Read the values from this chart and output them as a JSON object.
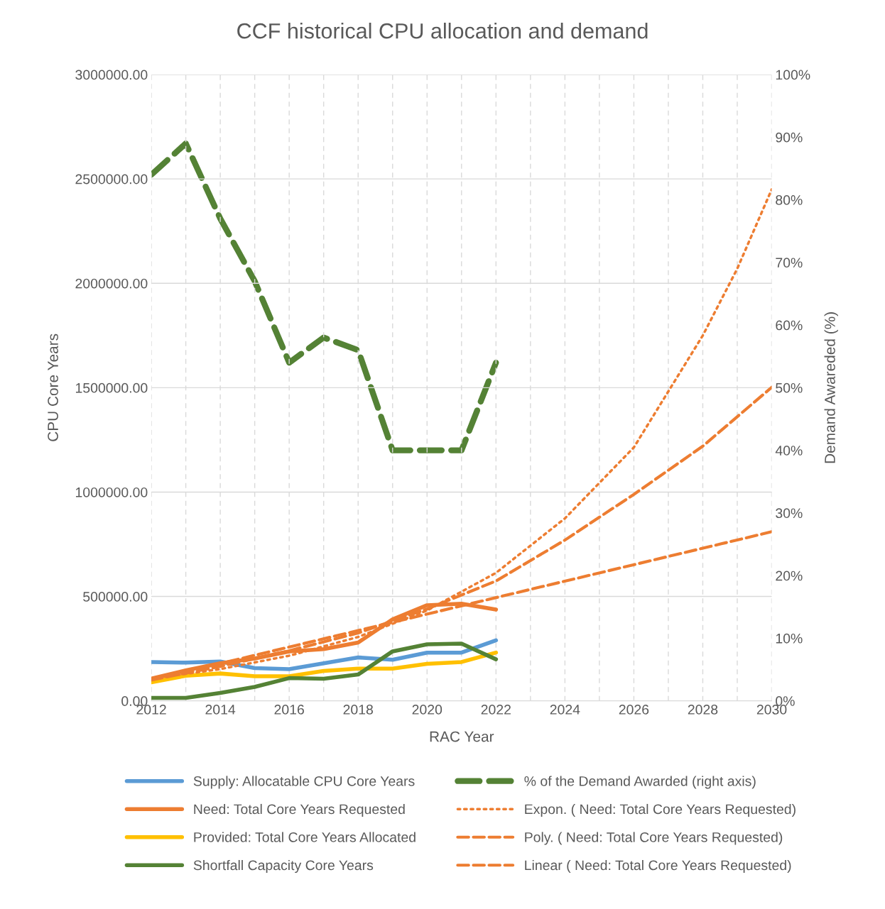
{
  "chart_data": {
    "type": "line",
    "title": "CCF historical CPU allocation and demand",
    "xlabel": "RAC Year",
    "ylabel": "CPU Core Years",
    "y2label": "Demand Awareded (%)",
    "x": [
      2012,
      2013,
      2014,
      2015,
      2016,
      2017,
      2018,
      2019,
      2020,
      2021,
      2022
    ],
    "series": [
      {
        "name": "Supply: Allocatable CPU Core Years",
        "color": "#5b9bd5",
        "line_style": "solid",
        "values": [
          186000,
          183000,
          188000,
          157000,
          152000,
          180000,
          208000,
          197000,
          231000,
          231000,
          290000
        ]
      },
      {
        "name": "Need: Total Core Years Requested",
        "color": "#ed7d31",
        "line_style": "solid",
        "values": [
          106000,
          146000,
          180000,
          203000,
          237000,
          248000,
          279000,
          390000,
          458000,
          465000,
          437000
        ]
      },
      {
        "name": "Provided: Total Core Years Allocated",
        "color": "#ffc000",
        "line_style": "solid",
        "values": [
          89000,
          120000,
          131000,
          118000,
          118000,
          143000,
          154000,
          154000,
          177000,
          186000,
          231000
        ]
      },
      {
        "name": "Shortfall Capacity Core Years",
        "color": "#548235",
        "line_style": "solid",
        "values": [
          14000,
          14000,
          38000,
          67000,
          109000,
          106000,
          126000,
          237000,
          271000,
          274000,
          199000
        ]
      },
      {
        "name": "% of the Demand Awarded (right axis)",
        "color": "#548235",
        "line_style": "dashed",
        "axis": "y2",
        "values": [
          84,
          89,
          77,
          67,
          54,
          58,
          56,
          40,
          40,
          40,
          54
        ]
      },
      {
        "name": "Expon. ( Need: Total Core Years Requested)",
        "color": "#ed7d31",
        "line_style": "dotted",
        "x": [
          2012,
          2014,
          2016,
          2018,
          2020,
          2022,
          2024,
          2026,
          2028,
          2029,
          2030
        ],
        "values": [
          107000,
          152000,
          216000,
          306000,
          433000,
          613000,
          874000,
          1214000,
          1750000,
          2070000,
          2450000
        ]
      },
      {
        "name": "Poly. ( Need: Total Core Years Requested)",
        "color": "#ed7d31",
        "line_style": "dashed",
        "x": [
          2012,
          2014,
          2016,
          2018,
          2020,
          2022,
          2024,
          2026,
          2028,
          2030
        ],
        "values": [
          100000,
          165000,
          240000,
          325000,
          440000,
          574000,
          770000,
          989000,
          1220000,
          1502000
        ]
      },
      {
        "name": "Linear ( Need: Total Core Years Requested)",
        "color": "#ed7d31",
        "line_style": "dashed",
        "x": [
          2012,
          2030
        ],
        "values": [
          100000,
          810000
        ]
      }
    ],
    "xlim": [
      2012,
      2030
    ],
    "xticks": [
      2012,
      {
        "value": 2013,
        "label": null
      },
      2014,
      {
        "value": 2015,
        "label": null
      },
      2016,
      {
        "value": 2017,
        "label": null
      },
      2018,
      {
        "value": 2019,
        "label": null
      },
      2020,
      {
        "value": 2021,
        "label": null
      },
      2022,
      {
        "value": 2023,
        "label": null
      },
      2024,
      {
        "value": 2025,
        "label": null
      },
      2026,
      {
        "value": 2027,
        "label": null
      },
      2028,
      {
        "value": 2029,
        "label": null
      },
      2030
    ],
    "ylim": [
      0,
      3000000
    ],
    "yticks": [
      {
        "value": 0,
        "label": "0.00"
      },
      {
        "value": 500000,
        "label": "500000.00"
      },
      {
        "value": 1000000,
        "label": "1000000.00"
      },
      {
        "value": 1500000,
        "label": "1500000.00"
      },
      {
        "value": 2000000,
        "label": "2000000.00"
      },
      {
        "value": 2500000,
        "label": "2500000.00"
      },
      {
        "value": 3000000,
        "label": "3000000.00"
      }
    ],
    "y2lim": [
      0,
      100
    ],
    "y2ticks": [
      {
        "value": 0,
        "label": "0%"
      },
      {
        "value": 10,
        "label": "10%"
      },
      {
        "value": 20,
        "label": "20%"
      },
      {
        "value": 30,
        "label": "30%"
      },
      {
        "value": 40,
        "label": "40%"
      },
      {
        "value": 50,
        "label": "50%"
      },
      {
        "value": 60,
        "label": "60%"
      },
      {
        "value": 70,
        "label": "70%"
      },
      {
        "value": 80,
        "label": "80%"
      },
      {
        "value": 90,
        "label": "90%"
      },
      {
        "value": 100,
        "label": "100%"
      }
    ],
    "grid": true,
    "legend": "bottom",
    "marker": "none"
  }
}
